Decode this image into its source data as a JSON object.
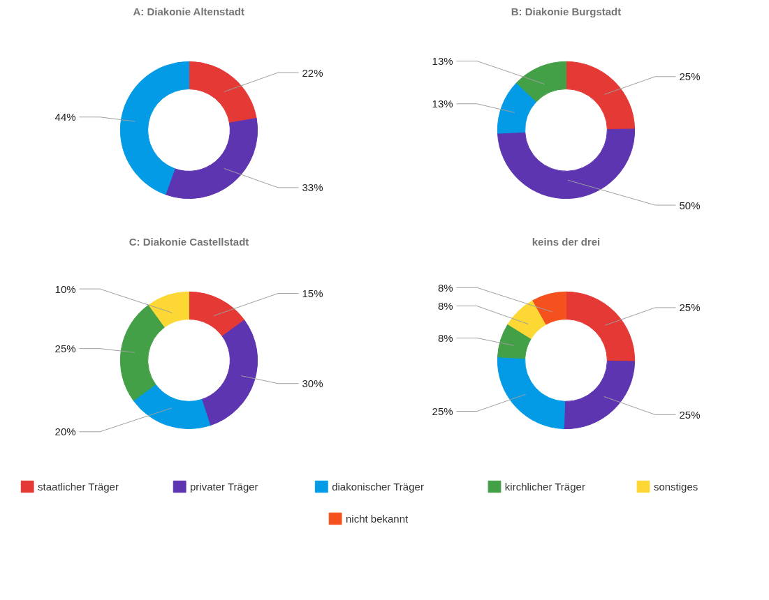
{
  "chart_data": [
    {
      "type": "donut",
      "title": "A: Diakonie Altenstadt",
      "categories": [
        null,
        null,
        null
      ],
      "values": [
        22,
        33,
        44
      ],
      "value_labels": [
        "22%",
        "33%",
        "44%"
      ],
      "colors": [
        "#e53935",
        "#5e35b1",
        "#039be5"
      ]
    },
    {
      "type": "donut",
      "title": "B: Diakonie Burgstadt",
      "categories": [
        null,
        null,
        null,
        null
      ],
      "values": [
        25,
        50,
        13,
        13
      ],
      "value_labels": [
        "25%",
        "50%",
        "13%",
        "13%"
      ],
      "colors": [
        "#e53935",
        "#5e35b1",
        "#039be5",
        "#43a047"
      ]
    },
    {
      "type": "donut",
      "title": "C: Diakonie Castellstadt",
      "categories": [
        null,
        null,
        null,
        null,
        null
      ],
      "values": [
        15,
        30,
        20,
        25,
        10
      ],
      "value_labels": [
        "15%",
        "30%",
        "20%",
        "25%",
        "10%"
      ],
      "colors": [
        "#e53935",
        "#5e35b1",
        "#039be5",
        "#43a047",
        "#fdd835"
      ]
    },
    {
      "type": "donut",
      "title": "keins der drei",
      "categories": [
        "staatlicher Träger",
        "privater Träger",
        "diakonischer Träger",
        "kirchlicher Träger",
        "sonstiges",
        "nicht bekannt"
      ],
      "values": [
        25,
        25,
        25,
        8,
        8,
        8
      ],
      "value_labels": [
        "25%",
        "25%",
        "25%",
        "8%",
        "8%",
        "8%"
      ],
      "colors": [
        "#e53935",
        "#5e35b1",
        "#039be5",
        "#43a047",
        "#fdd835",
        "#f4511e"
      ],
      "legend": "bottom"
    }
  ]
}
